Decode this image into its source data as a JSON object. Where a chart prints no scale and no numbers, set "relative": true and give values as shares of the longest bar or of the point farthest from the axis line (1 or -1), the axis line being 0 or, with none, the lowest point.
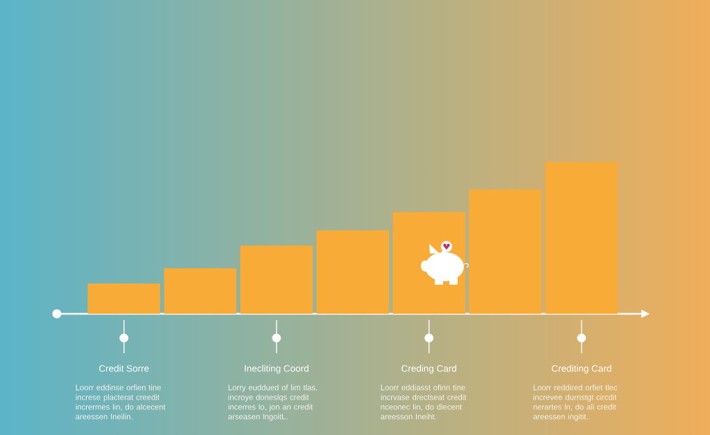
{
  "chart_data": {
    "type": "bar",
    "relative": true,
    "categories": [
      "Credit Sorre",
      null,
      "Inecliting Coord",
      null,
      "Creding Card",
      null,
      "Crediting Card"
    ],
    "values": [
      0.2,
      0.3,
      0.45,
      0.55,
      0.67,
      0.82,
      1
    ],
    "color": "#f8ab36",
    "annotations": [
      "Loorr eddinse orfien tine increse placterat creedit incrermes lin, do alcecent areessen Ineilin.",
      "Lorry euddued of lim tlas. incroye doneslqs credit incerres lo, jon an credit arseasen lngoitL.",
      "Loorr eddiasst ofinn tine incrvase drectseat credit nceonec lin, do dlecent areesson Ineiht.",
      "Loorr reddired orfiet tlec increvee durnstgt circdit nerartes ln, do ali credit areessen ingitit.."
    ]
  }
}
